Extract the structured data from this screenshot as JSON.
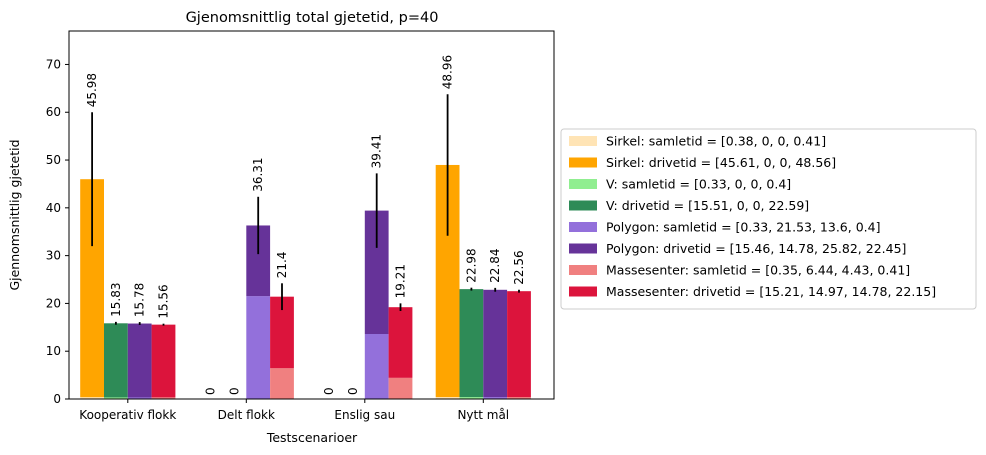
{
  "chart_data": {
    "type": "bar",
    "title": "Gjenomsnittlig total gjetetid, p=40",
    "xlabel": "Testscenarioer",
    "ylabel": "Gjennomsnittlig gjetetid",
    "categories": [
      "Kooperativ flokk",
      "Delt flokk",
      "Enslig sau",
      "Nytt mål"
    ],
    "ylim": [
      0,
      77
    ],
    "yticks": [
      0,
      10,
      20,
      30,
      40,
      50,
      60,
      70
    ],
    "grid": false,
    "legend_position": "right, outside",
    "groups": [
      {
        "name": "Sirkel",
        "samle_color": "#FFE4B5",
        "drive_color": "#FFA500",
        "samletid": [
          0.38,
          0,
          0,
          0.41
        ],
        "drivetid": [
          45.61,
          0,
          0,
          48.56
        ],
        "totals": [
          "45.98",
          "0",
          "0",
          "48.96"
        ],
        "errors": [
          14,
          0,
          0,
          14.8
        ]
      },
      {
        "name": "V",
        "samle_color": "#90EE90",
        "drive_color": "#2E8B57",
        "samletid": [
          0.33,
          0,
          0,
          0.4
        ],
        "drivetid": [
          15.51,
          0,
          0,
          22.59
        ],
        "totals": [
          "15.83",
          "0",
          "0",
          "22.98"
        ],
        "errors": [
          0.3,
          0,
          0,
          0.3
        ]
      },
      {
        "name": "Polygon",
        "samle_color": "#9370DB",
        "drive_color": "#663399",
        "samletid": [
          0.33,
          21.53,
          13.6,
          0.4
        ],
        "drivetid": [
          15.46,
          14.78,
          25.82,
          22.45
        ],
        "totals": [
          "15.78",
          "36.31",
          "39.41",
          "22.84"
        ],
        "errors": [
          0.3,
          6,
          7.8,
          0.4
        ]
      },
      {
        "name": "Massesenter",
        "samle_color": "#F08080",
        "drive_color": "#DC143C",
        "samletid": [
          0.35,
          6.44,
          4.43,
          0.41
        ],
        "drivetid": [
          15.21,
          14.97,
          14.78,
          22.15
        ],
        "totals": [
          "15.56",
          "21.4",
          "19.21",
          "22.56"
        ],
        "errors": [
          0.2,
          2.8,
          0.8,
          0.3
        ]
      }
    ],
    "legend": [
      {
        "label": "Sirkel: samletid = [0.38, 0, 0, 0.41]",
        "color": "#FFE4B5"
      },
      {
        "label": "Sirkel: drivetid = [45.61, 0, 0, 48.56]",
        "color": "#FFA500"
      },
      {
        "label": "V: samletid = [0.33, 0, 0, 0.4]",
        "color": "#90EE90"
      },
      {
        "label": "V: drivetid = [15.51, 0, 0, 22.59]",
        "color": "#2E8B57"
      },
      {
        "label": "Polygon: samletid = [0.33, 21.53, 13.6, 0.4]",
        "color": "#9370DB"
      },
      {
        "label": "Polygon: drivetid = [15.46, 14.78, 25.82, 22.45]",
        "color": "#663399"
      },
      {
        "label": "Massesenter: samletid = [0.35, 6.44, 4.43, 0.41]",
        "color": "#F08080"
      },
      {
        "label": "Massesenter: drivetid = [15.21, 14.97, 14.78, 22.15]",
        "color": "#DC143C"
      }
    ]
  }
}
